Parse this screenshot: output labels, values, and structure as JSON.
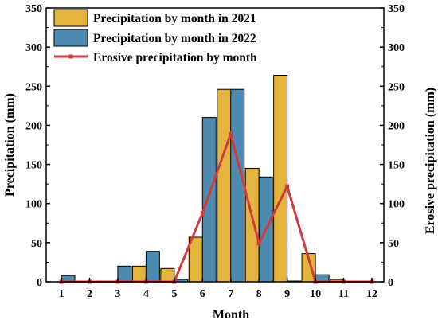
{
  "chart_data": {
    "type": "bar",
    "xlabel": "Month",
    "ylabel": "Precipitation (mm)",
    "y2label": "Erosive precipitation (mm)",
    "ylim": [
      0,
      350
    ],
    "y2lim": [
      0,
      350
    ],
    "categories": [
      "1",
      "2",
      "3",
      "4",
      "5",
      "6",
      "7",
      "8",
      "9",
      "10",
      "11",
      "12"
    ],
    "yticks": [
      "0",
      "50",
      "100",
      "150",
      "200",
      "250",
      "300",
      "350"
    ],
    "series": [
      {
        "name": "Precipitation by month in 2021",
        "kind": "bar",
        "color": "#E3B53C",
        "values": [
          0,
          0,
          0,
          20,
          17,
          57,
          246,
          145,
          264,
          36,
          3,
          0
        ]
      },
      {
        "name": "Precipitation by month in 2022",
        "kind": "bar",
        "color": "#4F8AB0",
        "values": [
          8,
          0,
          20,
          39,
          3,
          210,
          246,
          134,
          1,
          9,
          1,
          0
        ]
      },
      {
        "name": "Erosive precipitation by month",
        "kind": "line",
        "axis": "right",
        "color": "#D03B3B",
        "values": [
          0,
          0,
          0,
          0,
          0,
          88,
          189,
          49,
          122,
          0,
          0,
          0
        ]
      }
    ],
    "legend_position": "top-left",
    "grid": false
  }
}
